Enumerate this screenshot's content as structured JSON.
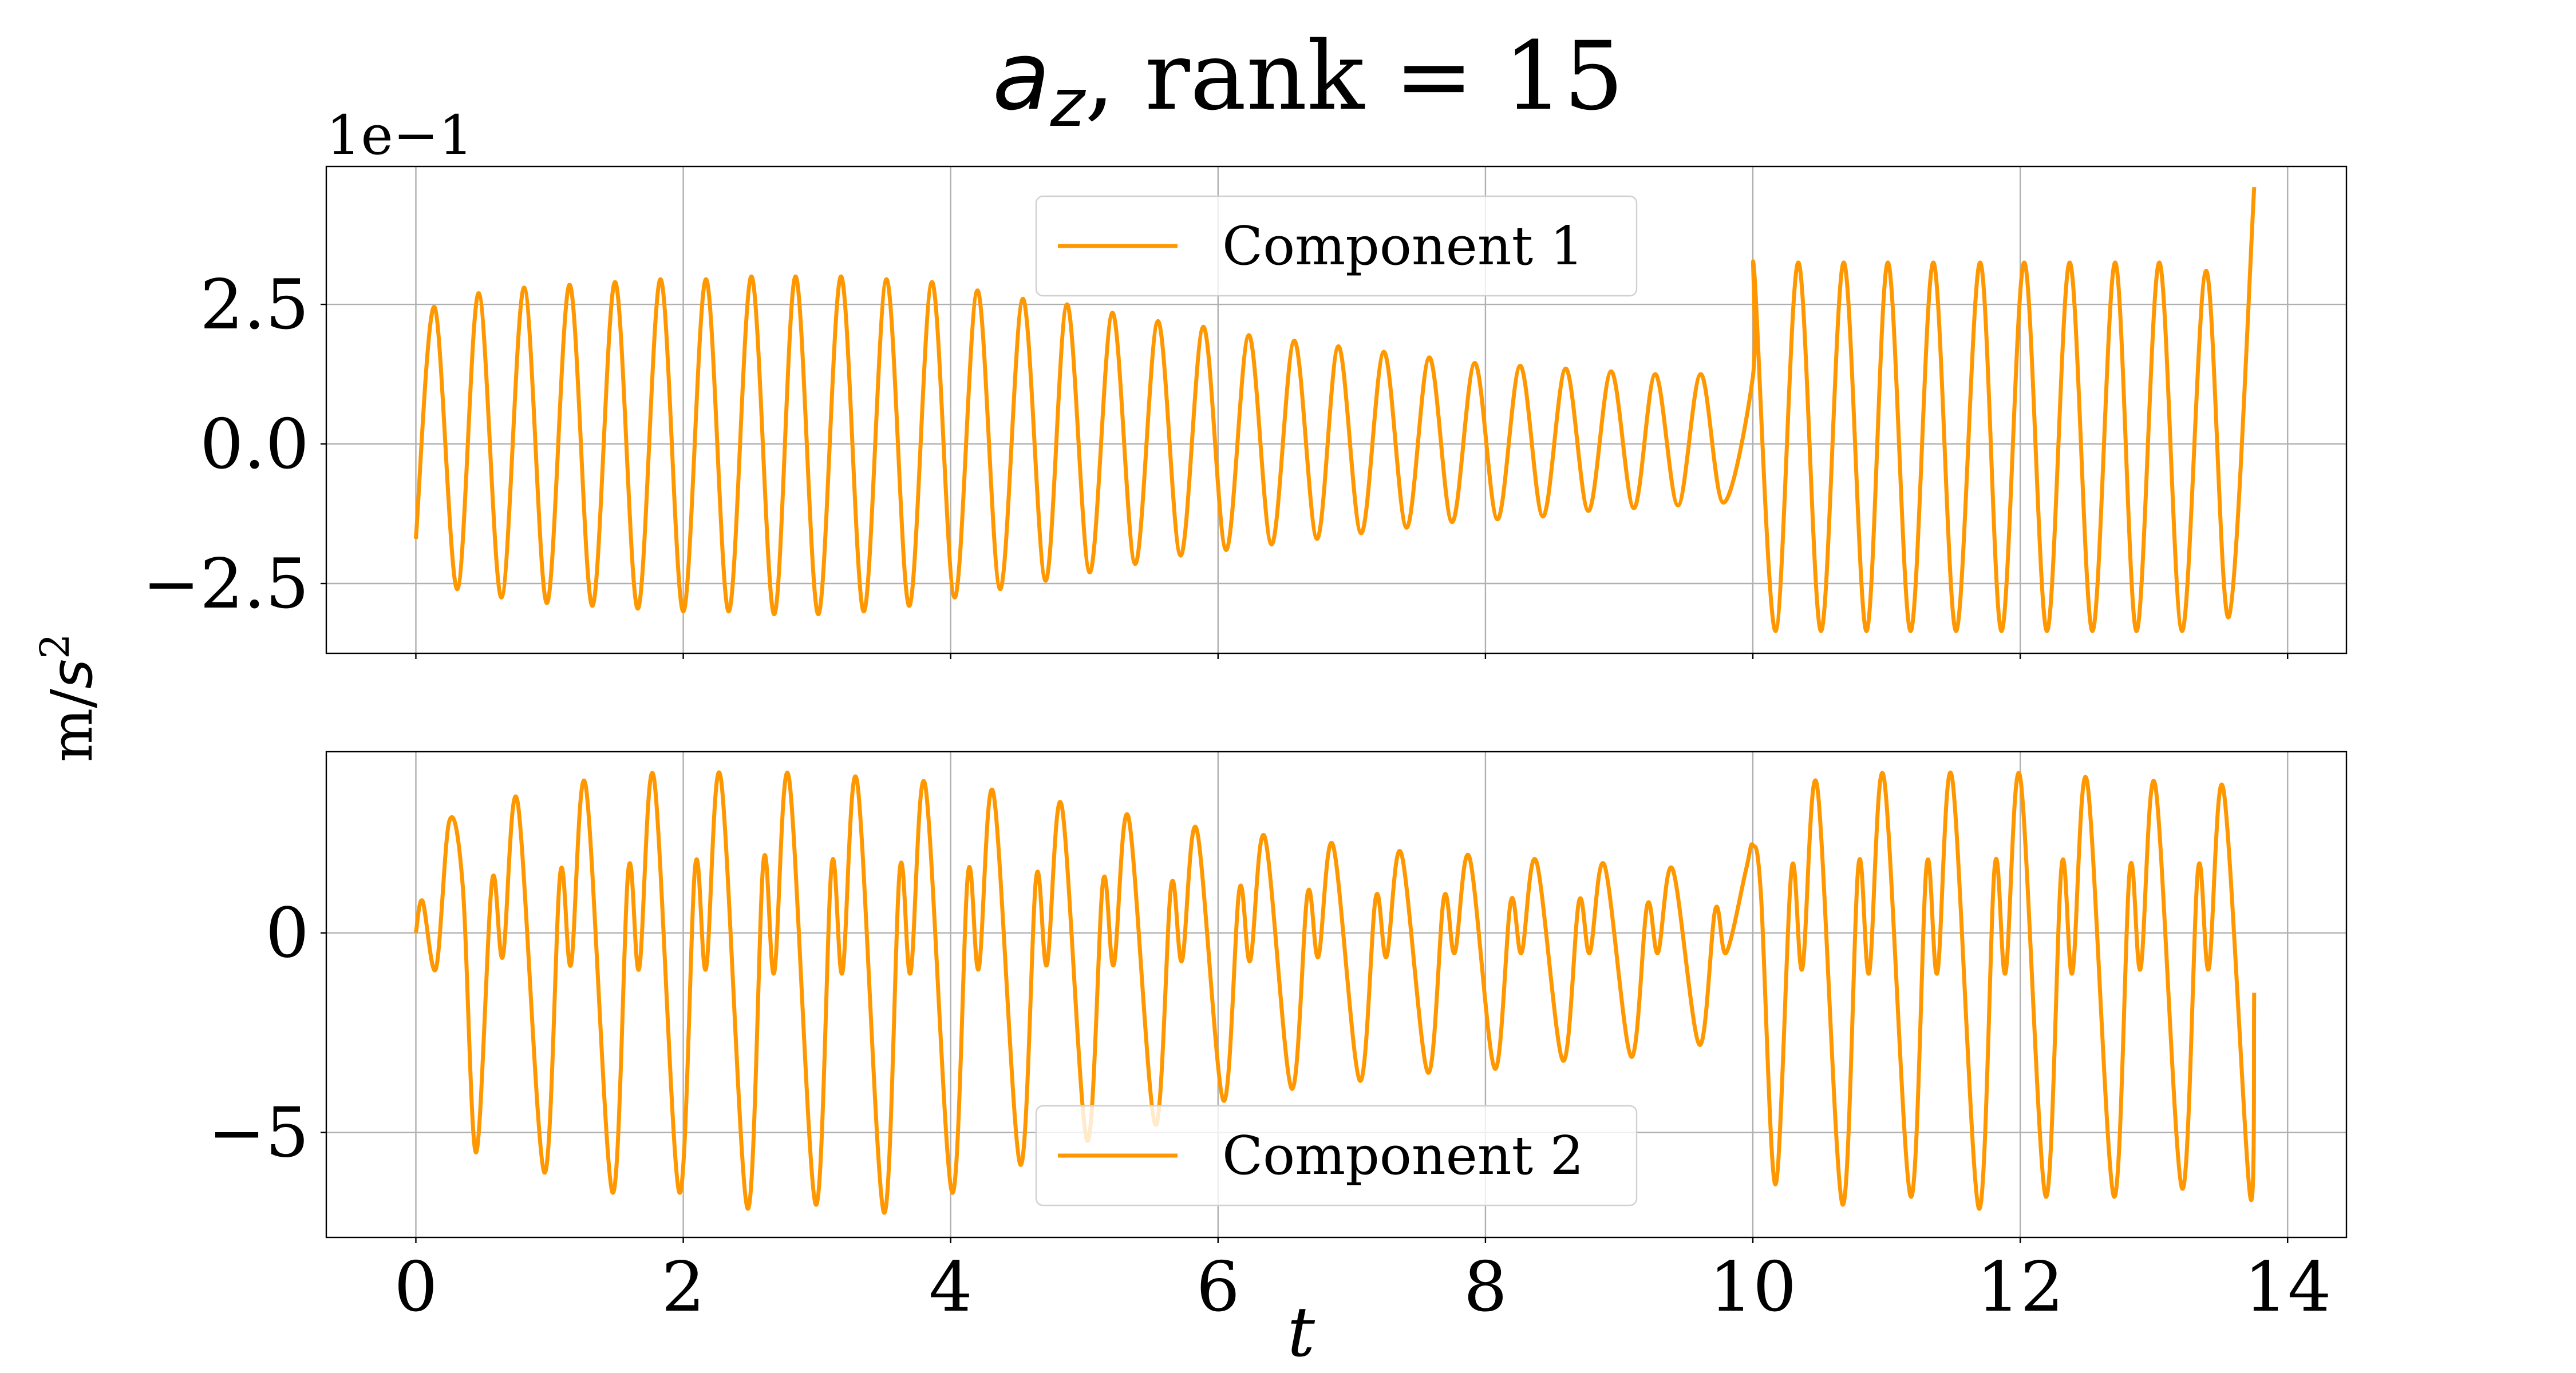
{
  "title": {
    "symbol": "a",
    "subscript": "z",
    "text": ", rank = 15"
  },
  "ylabel": {
    "text": "m/",
    "symbol": "s",
    "superscript": "2"
  },
  "xlabel": "t",
  "chart_data": [
    {
      "type": "line",
      "offset_text": "1e−1",
      "legend": "upper center",
      "grid": true,
      "show_xtick_labels": false,
      "xlim": [
        -0.67,
        14.44
      ],
      "xticks": [
        0,
        2,
        4,
        6,
        8,
        10,
        12,
        14
      ],
      "ylim": [
        -3.75,
        4.97
      ],
      "yticks": [
        {
          "value": -2.5,
          "label": "−2.5"
        },
        {
          "value": 0,
          "label": "0.0"
        },
        {
          "value": 2.5,
          "label": "2.5"
        }
      ],
      "x": [
        0,
        0.14,
        0.31,
        0.47,
        0.64,
        0.81,
        0.98,
        1.15,
        1.32,
        1.49,
        1.66,
        1.83,
        2.0,
        2.17,
        2.34,
        2.51,
        2.68,
        2.84,
        3.01,
        3.18,
        3.35,
        3.52,
        3.69,
        3.86,
        4.03,
        4.2,
        4.37,
        4.54,
        4.71,
        4.87,
        5.04,
        5.21,
        5.38,
        5.55,
        5.72,
        5.89,
        6.06,
        6.23,
        6.4,
        6.57,
        6.74,
        6.9,
        7.07,
        7.24,
        7.41,
        7.58,
        7.75,
        7.92,
        8.09,
        8.26,
        8.43,
        8.6,
        8.77,
        8.94,
        9.11,
        9.27,
        9.44,
        9.61,
        9.78,
        10.0,
        10.01,
        10.17,
        10.34,
        10.51,
        10.68,
        10.85,
        11.01,
        11.18,
        11.35,
        11.52,
        11.7,
        11.86,
        12.03,
        12.2,
        12.37,
        12.54,
        12.71,
        12.87,
        13.04,
        13.21,
        13.39,
        13.56,
        13.75
      ],
      "series": [
        {
          "name": "Component 1",
          "color": "#ff9800",
          "values": [
            -1.7,
            2.45,
            -2.6,
            2.7,
            -2.75,
            2.8,
            -2.85,
            2.85,
            -2.9,
            2.9,
            -2.95,
            2.95,
            -3.0,
            2.95,
            -3.0,
            3.0,
            -3.05,
            3.0,
            -3.05,
            3.0,
            -3.0,
            2.95,
            -2.9,
            2.9,
            -2.75,
            2.75,
            -2.6,
            2.6,
            -2.45,
            2.5,
            -2.3,
            2.35,
            -2.15,
            2.2,
            -2.0,
            2.1,
            -1.9,
            1.95,
            -1.8,
            1.85,
            -1.7,
            1.75,
            -1.6,
            1.65,
            -1.5,
            1.55,
            -1.4,
            1.45,
            -1.35,
            1.4,
            -1.3,
            1.35,
            -1.2,
            1.3,
            -1.15,
            1.25,
            -1.1,
            1.25,
            -1.05,
            1.2,
            3.1,
            -3.35,
            3.25,
            -3.35,
            3.25,
            -3.35,
            3.25,
            -3.35,
            3.25,
            -3.35,
            3.25,
            -3.35,
            3.25,
            -3.35,
            3.25,
            -3.35,
            3.25,
            -3.35,
            3.25,
            -3.35,
            3.1,
            -3.1,
            4.6
          ]
        }
      ]
    },
    {
      "type": "line",
      "legend": "lower center",
      "grid": true,
      "show_xtick_labels": true,
      "xlim": [
        -0.67,
        14.44
      ],
      "xticks": [
        0,
        2,
        4,
        6,
        8,
        10,
        12,
        14
      ],
      "ylim": [
        -7.63,
        4.54
      ],
      "yticks": [
        {
          "value": -5,
          "label": "−5"
        },
        0
      ],
      "x": [
        0,
        0.05,
        0.15,
        0.25,
        0.35,
        0.45,
        0.57,
        0.65,
        0.76,
        0.96,
        1.08,
        1.16,
        1.27,
        1.47,
        1.59,
        1.67,
        1.78,
        1.97,
        2.09,
        2.17,
        2.28,
        2.48,
        2.6,
        2.68,
        2.79,
        2.99,
        3.11,
        3.19,
        3.3,
        3.5,
        3.62,
        3.7,
        3.81,
        4.01,
        4.13,
        4.21,
        4.32,
        4.52,
        4.64,
        4.72,
        4.83,
        5.02,
        5.14,
        5.22,
        5.33,
        5.53,
        5.65,
        5.73,
        5.84,
        6.04,
        6.16,
        6.24,
        6.35,
        6.55,
        6.67,
        6.75,
        6.86,
        7.06,
        7.18,
        7.26,
        7.37,
        7.57,
        7.69,
        7.77,
        7.88,
        8.07,
        8.19,
        8.27,
        8.38,
        8.58,
        8.7,
        8.78,
        8.89,
        9.09,
        9.21,
        9.29,
        9.4,
        9.6,
        9.72,
        9.8,
        9.95,
        10.0,
        10.06,
        10.17,
        10.29,
        10.37,
        10.48,
        10.67,
        10.79,
        10.87,
        10.98,
        11.18,
        11.3,
        11.38,
        11.49,
        11.69,
        11.81,
        11.89,
        12.0,
        12.19,
        12.31,
        12.39,
        12.5,
        12.7,
        12.82,
        12.9,
        13.01,
        13.21,
        13.33,
        13.41,
        13.52,
        13.72,
        13.75
      ],
      "series": [
        {
          "name": "Component 2",
          "color": "#ff9800",
          "values": [
            0,
            0.8,
            -0.9,
            2.8,
            1.2,
            -5.5,
            1.3,
            -0.6,
            3.3,
            -6.0,
            1.5,
            -0.8,
            3.7,
            -6.5,
            1.6,
            -0.9,
            3.9,
            -6.5,
            1.7,
            -0.9,
            3.9,
            -6.9,
            1.8,
            -1.0,
            3.9,
            -6.8,
            1.7,
            -1.0,
            3.8,
            -7.0,
            1.6,
            -1.0,
            3.7,
            -6.5,
            1.5,
            -0.9,
            3.5,
            -5.8,
            1.4,
            -0.8,
            3.2,
            -5.2,
            1.3,
            -0.8,
            2.9,
            -4.8,
            1.2,
            -0.7,
            2.6,
            -4.2,
            1.1,
            -0.7,
            2.4,
            -3.9,
            1.0,
            -0.6,
            2.2,
            -3.7,
            0.9,
            -0.6,
            2.0,
            -3.5,
            0.9,
            -0.5,
            1.9,
            -3.4,
            0.8,
            -0.5,
            1.8,
            -3.2,
            0.8,
            -0.5,
            1.7,
            -3.1,
            0.7,
            -0.5,
            1.6,
            -2.8,
            0.6,
            -0.5,
            1.6,
            2.2,
            1.0,
            -6.3,
            1.6,
            -0.9,
            3.7,
            -6.8,
            1.7,
            -1.0,
            3.9,
            -6.6,
            1.7,
            -1.0,
            3.9,
            -6.9,
            1.7,
            -1.0,
            3.9,
            -6.6,
            1.7,
            -1.0,
            3.8,
            -6.6,
            1.6,
            -0.9,
            3.7,
            -6.4,
            1.6,
            -0.9,
            3.6,
            -6.6,
            -1.5
          ]
        }
      ]
    }
  ]
}
